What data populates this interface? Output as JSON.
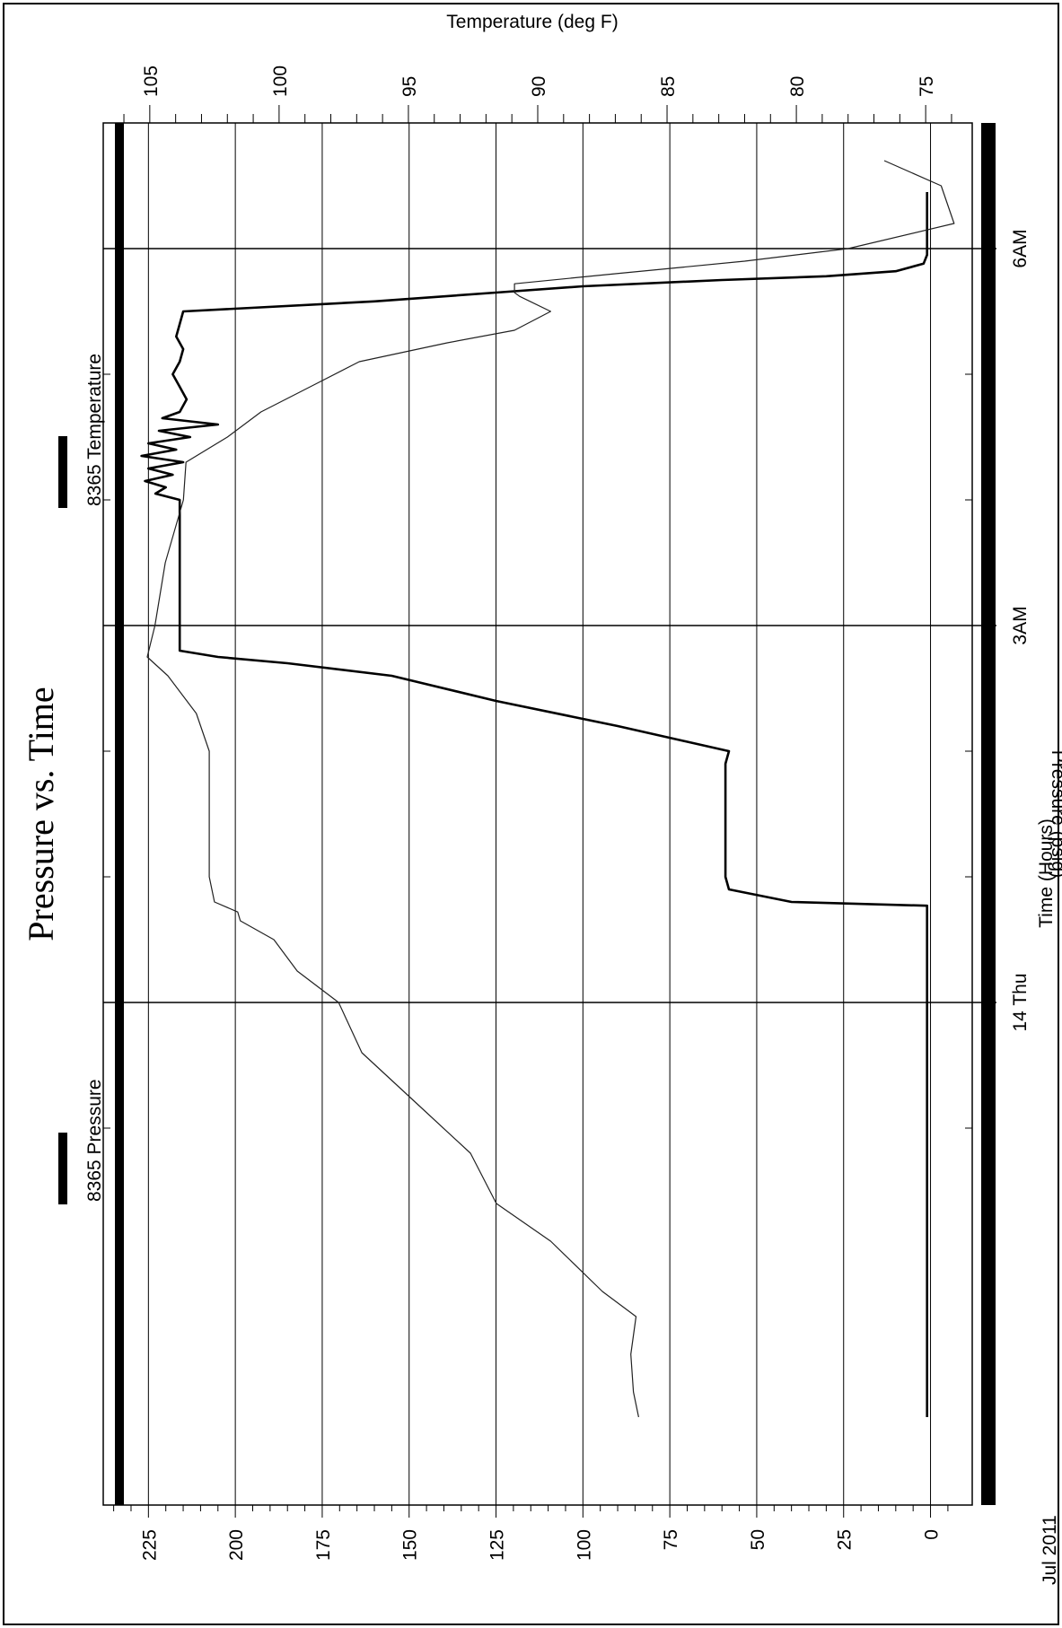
{
  "chart_data": {
    "type": "line",
    "title": "Pressure vs. Time",
    "xlabel": "Time (Hours)",
    "ylabel": "Pressure (psig)",
    "y2label": "Temperature (deg F)",
    "date_label": "Jul 2011",
    "x_range_hours": [
      -4.0,
      7.0
    ],
    "ylim": [
      -12,
      238
    ],
    "y2lim": [
      73.2,
      106.8
    ],
    "y_ticks": [
      0,
      25,
      50,
      75,
      100,
      125,
      150,
      175,
      200,
      225
    ],
    "y2_ticks": [
      75,
      80,
      85,
      90,
      95,
      100,
      105
    ],
    "x_major_ticks": [
      {
        "hour": 0,
        "label": "14 Thu"
      },
      {
        "hour": 3,
        "label": "3AM"
      },
      {
        "hour": 6,
        "label": "6AM"
      }
    ],
    "x_minor_ticks": [
      -1,
      1,
      2,
      4,
      5
    ],
    "legend_placement": "top",
    "series": [
      {
        "name": "8365 Pressure",
        "axis": "left",
        "x": [
          -3.3,
          -2.5,
          -1.5,
          -0.5,
          0.0,
          0.5,
          0.77,
          0.8,
          0.9,
          1.0,
          1.2,
          1.5,
          1.9,
          2.0,
          2.2,
          2.4,
          2.6,
          2.7,
          2.75,
          2.8,
          3.0,
          3.5,
          3.9,
          4.0,
          4.05,
          4.1,
          4.15,
          4.2,
          4.25,
          4.3,
          4.35,
          4.4,
          4.45,
          4.5,
          4.55,
          4.6,
          4.65,
          4.7,
          4.8,
          4.9,
          5.0,
          5.1,
          5.2,
          5.3,
          5.4,
          5.5,
          5.58,
          5.65,
          5.7,
          5.75,
          5.78,
          5.82,
          5.88,
          5.95,
          6.3,
          6.45
        ],
        "y": [
          1,
          1,
          1,
          1,
          1,
          1,
          1,
          40,
          58,
          59,
          59,
          59,
          59,
          58,
          90,
          125,
          155,
          185,
          205,
          216,
          216,
          216,
          216,
          216,
          223,
          220,
          226,
          218,
          225,
          215,
          227,
          217,
          225,
          213,
          222,
          205,
          221,
          216,
          214,
          216,
          218,
          216,
          215,
          217,
          216,
          215,
          160,
          125,
          100,
          60,
          30,
          10,
          2,
          1,
          1,
          1
        ]
      },
      {
        "name": "8365 Temperature",
        "axis": "right",
        "x": [
          -3.3,
          -3.1,
          -2.8,
          -2.5,
          -2.3,
          -1.9,
          -1.6,
          -1.2,
          -0.8,
          -0.4,
          0.0,
          0.25,
          0.5,
          0.65,
          0.72,
          0.8,
          1.0,
          1.5,
          2.0,
          2.3,
          2.6,
          2.75,
          3.0,
          3.5,
          4.0,
          4.3,
          4.5,
          4.7,
          4.9,
          5.1,
          5.25,
          5.35,
          5.5,
          5.62,
          5.65,
          5.72,
          5.8,
          5.9,
          6.0,
          6.2,
          6.5,
          6.7
        ],
        "y": [
          86.1,
          86.3,
          86.4,
          86.2,
          87.5,
          89.5,
          91.6,
          92.6,
          94.7,
          96.8,
          97.7,
          99.3,
          100.2,
          101.5,
          101.6,
          102.5,
          102.7,
          102.7,
          102.7,
          103.2,
          104.3,
          105.1,
          104.8,
          104.4,
          103.7,
          103.6,
          102.0,
          100.7,
          98.8,
          96.9,
          93.5,
          90.9,
          89.5,
          90.7,
          90.9,
          90.9,
          87.0,
          82.0,
          78.0,
          73.9,
          74.4,
          76.6
        ]
      }
    ]
  }
}
